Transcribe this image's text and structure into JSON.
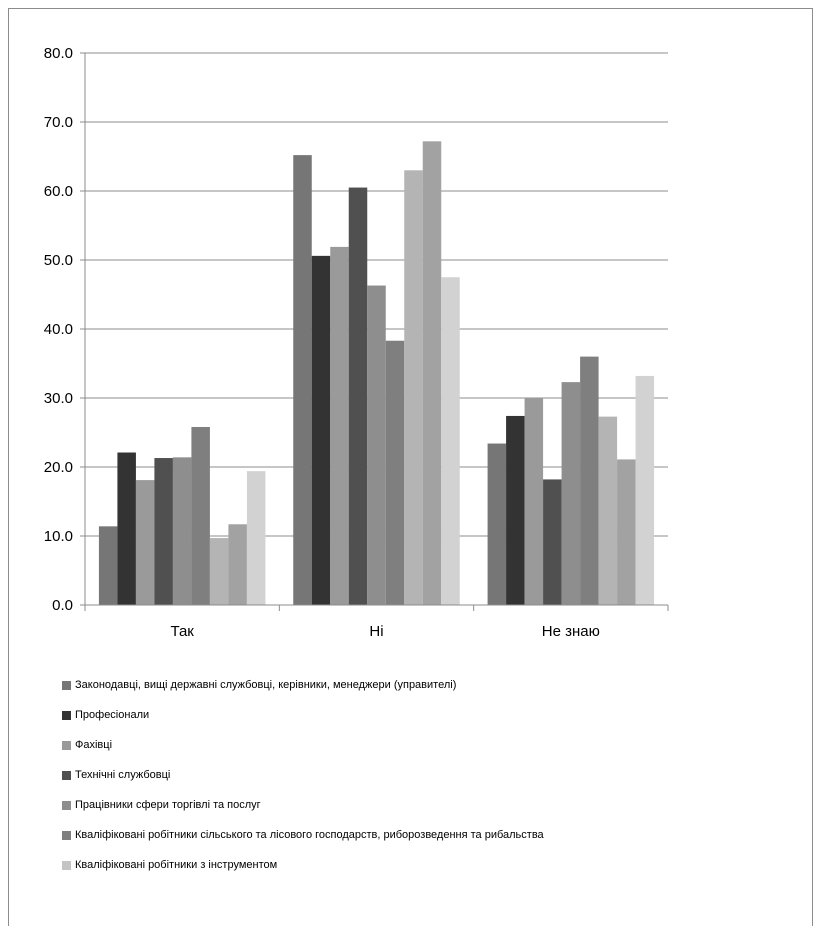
{
  "chart_data": {
    "type": "bar",
    "categories": [
      "Так",
      "Ні",
      "Не знаю"
    ],
    "ylim": [
      0,
      80
    ],
    "yticks": [
      "0.0",
      "10.0",
      "20.0",
      "30.0",
      "40.0",
      "50.0",
      "60.0",
      "70.0",
      "80.0"
    ],
    "grid": true,
    "legend_position": "bottom",
    "series": [
      {
        "name": "Законодавці, вищі державні службовці, керівники, менеджери (управителі)",
        "values": [
          11.4,
          65.2,
          23.4
        ],
        "color": "#767676"
      },
      {
        "name": "Професіонали",
        "values": [
          22.1,
          50.6,
          27.4
        ],
        "color": "#333333"
      },
      {
        "name": "Фахівці",
        "values": [
          18.1,
          51.9,
          30.0
        ],
        "color": "#9a9a9a"
      },
      {
        "name": "Технічні службовці",
        "values": [
          21.3,
          60.5,
          18.2
        ],
        "color": "#505050"
      },
      {
        "name": "Працівники сфери торгівлі та послуг",
        "values": [
          21.4,
          46.3,
          32.3
        ],
        "color": "#8e8e8e"
      },
      {
        "name": "Кваліфіковані робітники сільського та лісового господарств, риборозведення та рибальства",
        "values": [
          25.8,
          38.3,
          36.0
        ],
        "color": "#7f7f7f"
      },
      {
        "name": "",
        "values": [
          9.7,
          63.0,
          27.3
        ],
        "color": "#b4b4b4"
      },
      {
        "name": "",
        "values": [
          11.7,
          67.2,
          21.1
        ],
        "color": "#a2a2a2"
      },
      {
        "name": "Кваліфіковані робітники з інструментом",
        "values": [
          19.4,
          47.5,
          33.2
        ],
        "color": "#d2d2d2"
      }
    ],
    "legend": [
      {
        "label": "Законодавці, вищі державні службовці, керівники, менеджери (управителі)",
        "color": "#767676"
      },
      {
        "label": "Професіонали",
        "color": "#333333"
      },
      {
        "label": "Фахівці",
        "color": "#9a9a9a"
      },
      {
        "label": "Технічні службовці",
        "color": "#505050"
      },
      {
        "label": "Працівники сфери торгівлі та послуг",
        "color": "#8e8e8e"
      },
      {
        "label": "Кваліфіковані робітники сільського та лісового господарств, риборозведення та рибальства",
        "color": "#7f7f7f"
      },
      {
        "label": "Кваліфіковані робітники з інструментом",
        "color": "#c4c4c4"
      }
    ]
  }
}
